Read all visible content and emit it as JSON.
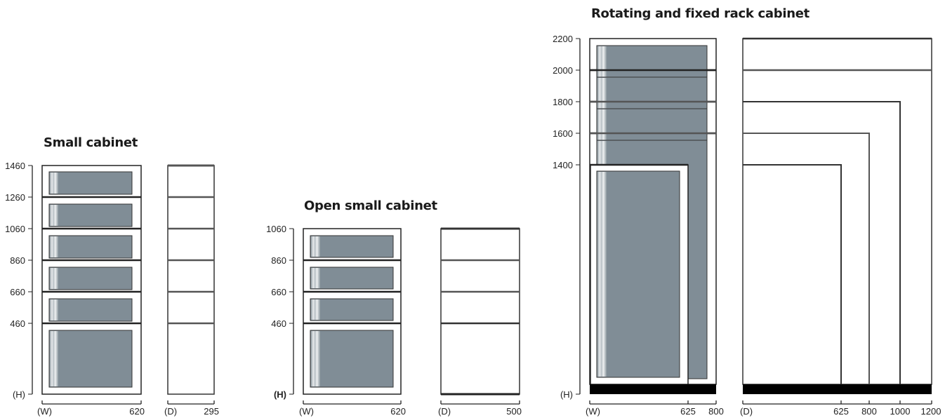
{
  "small_cabinet": {
    "title": "Small cabinet",
    "height_ticks": [
      "1460",
      "1260",
      "1060",
      "860",
      "660",
      "460",
      "(H)"
    ],
    "width_labels": {
      "start": "(W)",
      "end": "620"
    },
    "depth_labels": {
      "start": "(D)",
      "end": "295"
    }
  },
  "open_small_cabinet": {
    "title": "Open small cabinet",
    "height_ticks": [
      "1060",
      "860",
      "660",
      "460",
      "(H)"
    ],
    "width_labels": {
      "start": "(W)",
      "end": "620"
    },
    "depth_labels": {
      "start": "(D)",
      "end": "500"
    }
  },
  "rack_cabinet": {
    "title": "Rotating and fixed rack cabinet",
    "height_ticks": [
      "2200",
      "2000",
      "1800",
      "1600",
      "1400",
      "(H)"
    ],
    "width_labels": {
      "start": "(W)",
      "mid": "625",
      "end": "800"
    },
    "depth_labels": {
      "start": "(D)",
      "d1": "625",
      "d2": "800",
      "d3": "1000",
      "d4": "1200"
    }
  },
  "colors": {
    "panel": "#808d96",
    "outline": "#1a1a1a",
    "base": "#000000"
  }
}
